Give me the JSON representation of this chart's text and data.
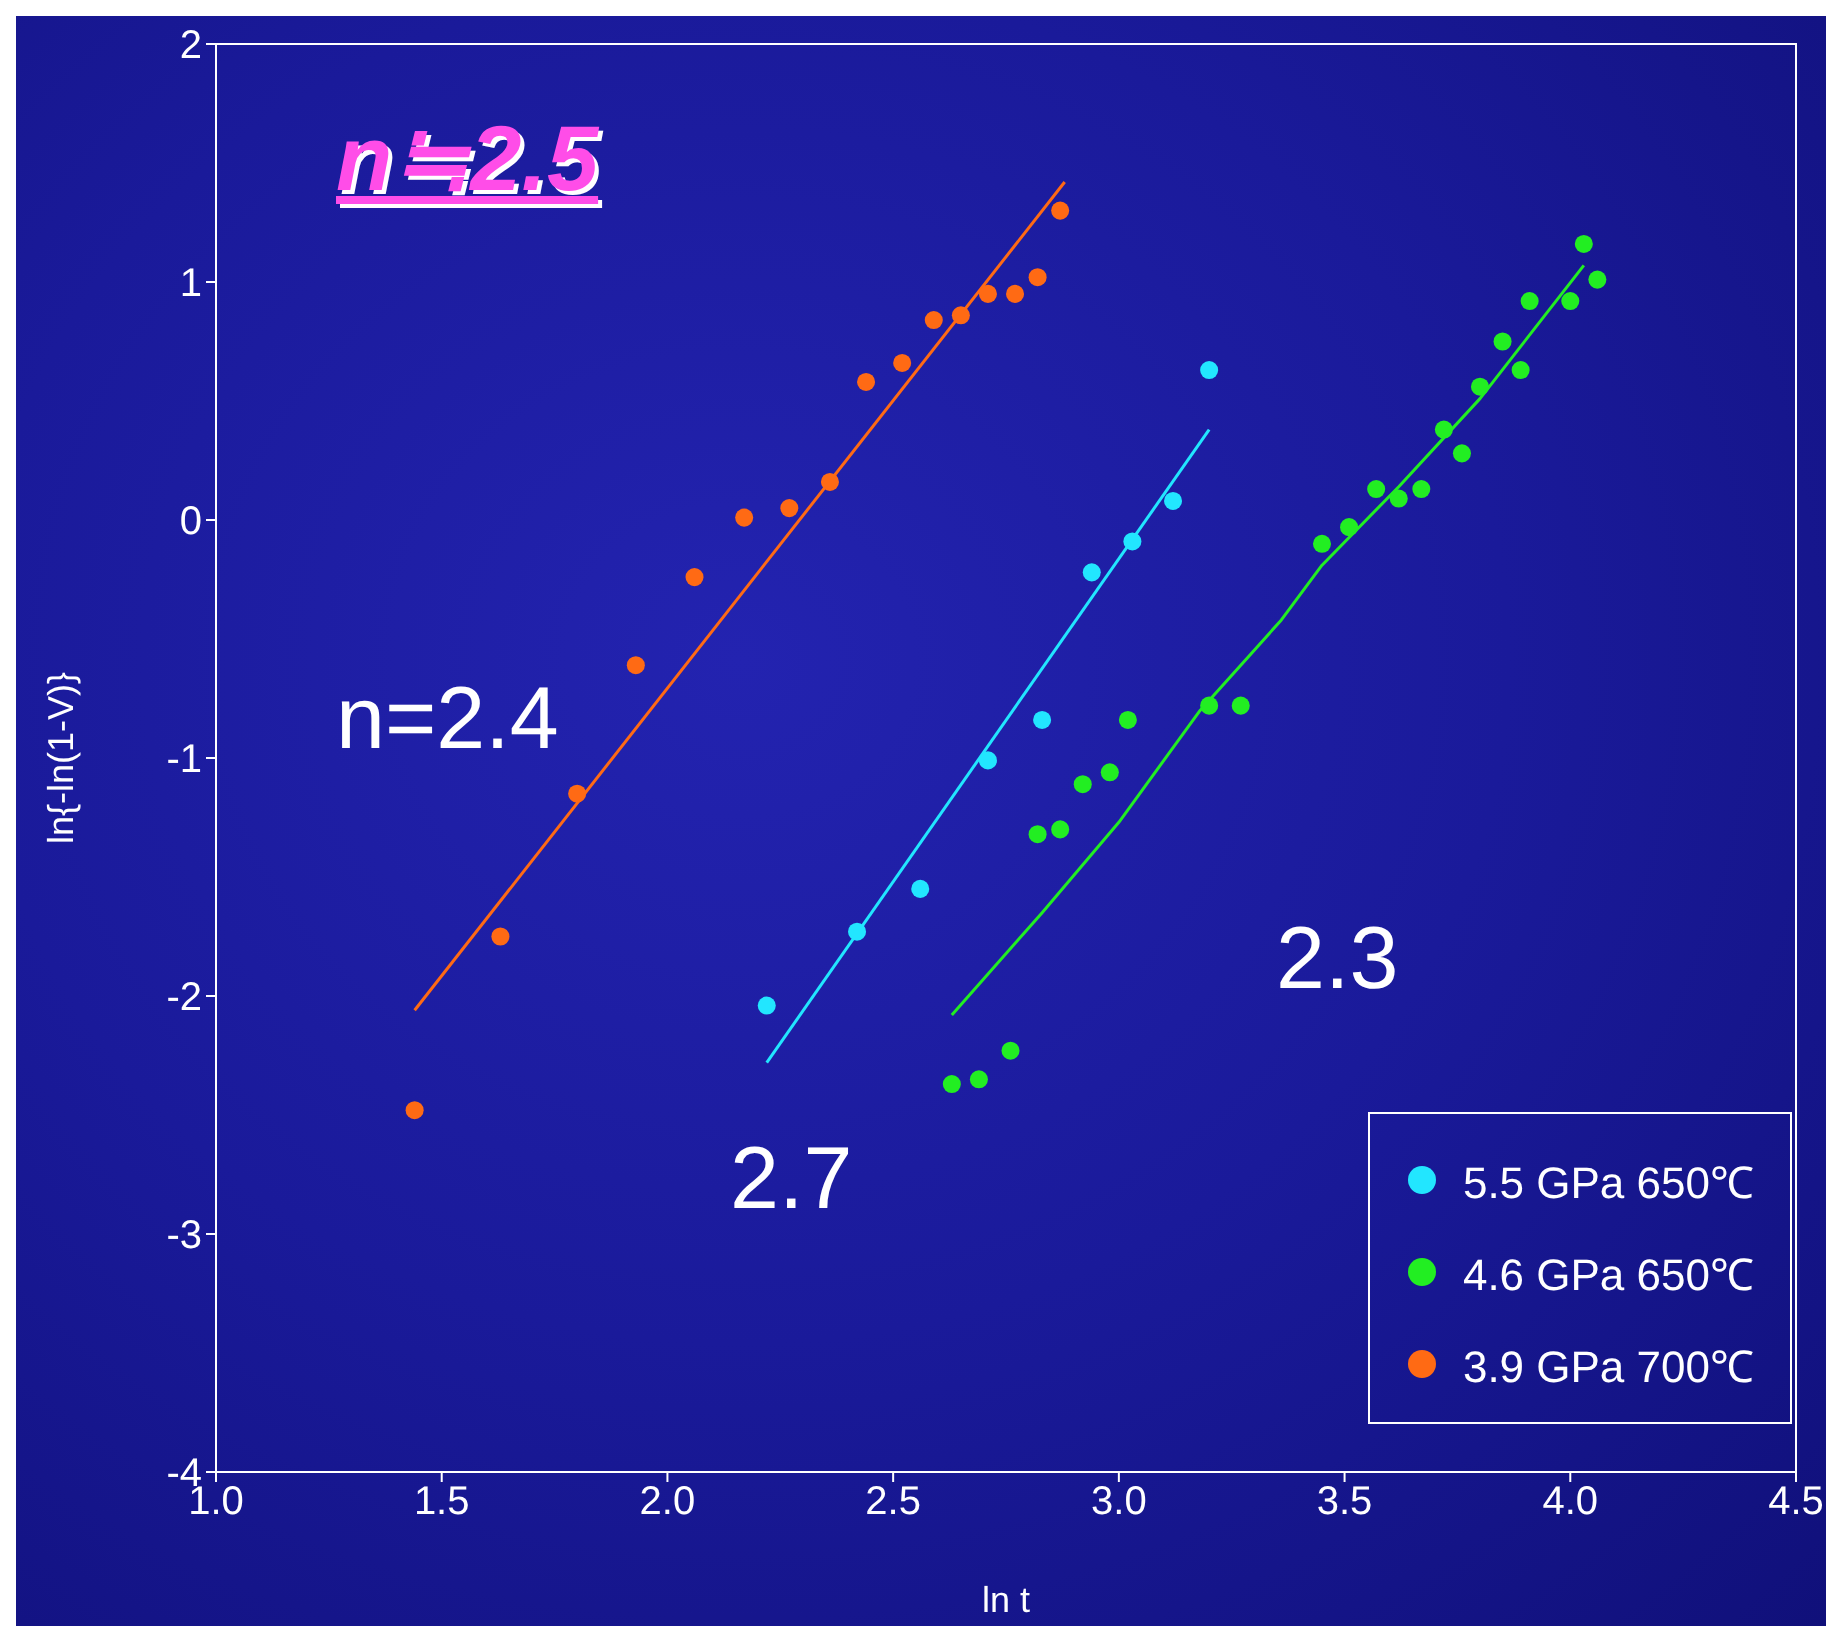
{
  "chart_data": {
    "type": "scatter",
    "title": "n≒2.5",
    "xlabel": "ln t",
    "ylabel": "ln{-ln(1-V)}",
    "xlim": [
      1.0,
      4.5
    ],
    "xticks": [
      {
        "value": 1.0,
        "label": "1.0"
      },
      {
        "value": 1.5,
        "label": "1.5"
      },
      {
        "value": 2.0,
        "label": "2.0"
      },
      {
        "value": 2.5,
        "label": "2.5"
      },
      {
        "value": 3.0,
        "label": "3.0"
      },
      {
        "value": 3.5,
        "label": "3.5"
      },
      {
        "value": 4.0,
        "label": "4.0"
      },
      {
        "value": 4.5,
        "label": "4.5"
      }
    ],
    "ylim": [
      -4,
      2
    ],
    "yticks": [
      -4,
      -3,
      -2,
      -1,
      0,
      1,
      2
    ],
    "legend": "bottom right",
    "series": [
      {
        "name": "5.5 GPa 650℃",
        "color": "#22e6ff",
        "marker": "circle",
        "x": [
          2.22,
          2.42,
          2.56,
          2.71,
          2.83,
          2.94,
          3.03,
          3.12,
          3.2
        ],
        "values": [
          -2.04,
          -1.73,
          -1.55,
          -1.01,
          -0.84,
          -0.22,
          -0.09,
          0.08,
          0.63
        ]
      },
      {
        "name": "4.6 GPa 650℃",
        "color": "#22ee22",
        "marker": "circle",
        "x": [
          2.63,
          2.69,
          2.76,
          2.82,
          2.87,
          2.92,
          2.98,
          3.02,
          3.2,
          3.27,
          3.45,
          3.51,
          3.57,
          3.62,
          3.67,
          3.72,
          3.76,
          3.8,
          3.85,
          3.89,
          3.91,
          4.0,
          4.03,
          4.06
        ],
        "values": [
          -2.37,
          -2.35,
          -2.23,
          -1.32,
          -1.3,
          -1.11,
          -1.06,
          -0.84,
          -0.78,
          -0.78,
          -0.1,
          -0.03,
          0.13,
          0.09,
          0.13,
          0.38,
          0.28,
          0.56,
          0.75,
          0.63,
          0.92,
          0.92,
          1.16,
          1.01
        ]
      },
      {
        "name": "3.9 GPa 700℃",
        "color": "#ff6a14",
        "marker": "circle",
        "x": [
          1.44,
          1.63,
          1.8,
          1.93,
          2.06,
          2.17,
          2.27,
          2.36,
          2.44,
          2.52,
          2.59,
          2.65,
          2.71,
          2.77,
          2.82,
          2.87
        ],
        "values": [
          -2.48,
          -1.75,
          -1.15,
          -0.61,
          -0.24,
          0.01,
          0.05,
          0.16,
          0.58,
          0.66,
          0.84,
          0.86,
          0.95,
          0.95,
          1.02,
          1.3
        ]
      },
      {
        "type": "line",
        "color": "#22e6ff",
        "x": [
          2.22,
          3.2
        ],
        "values": [
          -2.28,
          0.38
        ]
      },
      {
        "type": "line",
        "color": "#22ee22",
        "x": [
          2.63,
          2.83,
          3.0,
          3.18,
          3.36,
          3.45,
          3.62,
          3.8,
          4.03
        ],
        "values": [
          -2.08,
          -1.65,
          -1.27,
          -0.8,
          -0.42,
          -0.19,
          0.14,
          0.51,
          1.07
        ]
      },
      {
        "type": "line",
        "color": "#ff6a14",
        "x": [
          1.44,
          2.88
        ],
        "values": [
          -2.06,
          1.42
        ]
      }
    ],
    "annotations": [
      "n=2.4",
      "2.7",
      "2.3"
    ]
  }
}
